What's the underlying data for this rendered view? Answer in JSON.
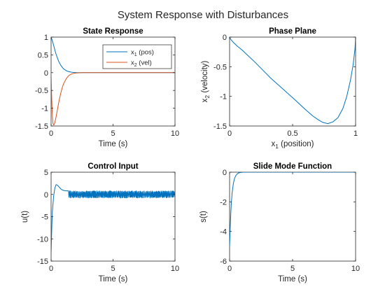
{
  "figure": {
    "title": "System Response with Disturbances"
  },
  "chart_data": [
    {
      "id": "state",
      "type": "line",
      "title": "State Response",
      "xlabel": "Time (s)",
      "ylabel": "",
      "xlim": [
        0,
        10
      ],
      "ylim": [
        -1.5,
        1
      ],
      "xticks": [
        0,
        5,
        10
      ],
      "xtick_labels": [
        "0",
        "5",
        "10"
      ],
      "yticks": [
        -1.5,
        -1,
        -0.5,
        0,
        0.5,
        1
      ],
      "ytick_labels": [
        "-1.5",
        "-1",
        "-0.5",
        "0",
        "0.5",
        "1"
      ],
      "grid": false,
      "legend": "top-right",
      "series": [
        {
          "name": "x1 (pos)",
          "legend_main": "x",
          "legend_sub": "1",
          "legend_rest": "(pos)",
          "color": "#0072BD",
          "x": [
            0,
            0.1,
            0.2,
            0.3,
            0.4,
            0.5,
            0.6,
            0.7,
            0.8,
            0.9,
            1.0,
            1.2,
            1.4,
            1.6,
            1.8,
            2.0,
            2.5,
            3.0,
            4.0,
            6.0,
            8.0,
            10.0
          ],
          "y": [
            1.0,
            0.9,
            0.77,
            0.64,
            0.52,
            0.42,
            0.33,
            0.26,
            0.2,
            0.15,
            0.11,
            0.06,
            0.03,
            0.015,
            0.007,
            0.003,
            0.0,
            0.0,
            0.0,
            0.0,
            0.0,
            0.0
          ]
        },
        {
          "name": "x2 (vel)",
          "legend_main": "x",
          "legend_sub": "2",
          "legend_rest": "(vel)",
          "color": "#D95319",
          "x": [
            0,
            0.05,
            0.1,
            0.15,
            0.2,
            0.25,
            0.3,
            0.4,
            0.5,
            0.6,
            0.7,
            0.8,
            0.9,
            1.0,
            1.2,
            1.4,
            1.6,
            1.8,
            2.0,
            2.5,
            3.0,
            4.0,
            6.0,
            8.0,
            10.0
          ],
          "y": [
            0.0,
            -0.75,
            -1.2,
            -1.42,
            -1.47,
            -1.46,
            -1.4,
            -1.25,
            -1.06,
            -0.87,
            -0.7,
            -0.55,
            -0.42,
            -0.32,
            -0.18,
            -0.09,
            -0.045,
            -0.02,
            -0.01,
            0.0,
            0.0,
            0.0,
            0.0,
            0.0,
            0.0
          ]
        }
      ]
    },
    {
      "id": "phase",
      "type": "line",
      "title": "Phase Plane",
      "xlabel": "(position)",
      "xlabel_main": "x",
      "xlabel_sub": "1",
      "ylabel": "(velocity)",
      "ylabel_main": "x",
      "ylabel_sub": "2",
      "xlim": [
        0,
        1
      ],
      "ylim": [
        -1.5,
        0
      ],
      "xticks": [
        0,
        0.5,
        1
      ],
      "xtick_labels": [
        "0",
        "0.5",
        "1"
      ],
      "yticks": [
        -1.5,
        -1,
        -0.5,
        0
      ],
      "ytick_labels": [
        "-1.5",
        "-1",
        "-0.5",
        "0"
      ],
      "grid": false,
      "series": [
        {
          "color": "#0072BD",
          "x": [
            0.0,
            0.01,
            0.03,
            0.06,
            0.1,
            0.15,
            0.2,
            0.26,
            0.33,
            0.42,
            0.52,
            0.6,
            0.66,
            0.7,
            0.74,
            0.78,
            0.82,
            0.86,
            0.9,
            0.93,
            0.96,
            0.98,
            0.995,
            1.0
          ],
          "y": [
            0.0,
            -0.04,
            -0.09,
            -0.15,
            -0.22,
            -0.32,
            -0.42,
            -0.55,
            -0.7,
            -0.87,
            -1.06,
            -1.22,
            -1.33,
            -1.39,
            -1.44,
            -1.46,
            -1.43,
            -1.36,
            -1.2,
            -1.0,
            -0.72,
            -0.47,
            -0.2,
            0.0
          ]
        }
      ]
    },
    {
      "id": "control",
      "type": "line",
      "title": "Control Input",
      "xlabel": "Time (s)",
      "ylabel": "u(t)",
      "xlim": [
        0,
        10
      ],
      "ylim": [
        -15,
        5
      ],
      "xticks": [
        0,
        5,
        10
      ],
      "xtick_labels": [
        "0",
        "5",
        "10"
      ],
      "yticks": [
        -15,
        -10,
        -5,
        0,
        5
      ],
      "ytick_labels": [
        "-15",
        "-10",
        "-5",
        "0",
        "5"
      ],
      "grid": false,
      "chatter_band": [
        -0.8,
        0.8
      ],
      "chatter_start": 1.4,
      "series": [
        {
          "color": "#0072BD",
          "x": [
            0.0,
            0.05,
            0.1,
            0.2,
            0.3,
            0.4,
            0.5,
            0.6,
            0.7,
            0.8,
            0.9,
            1.0,
            1.2,
            1.4
          ],
          "y": [
            -13.5,
            -8.0,
            -4.0,
            -0.5,
            1.4,
            2.2,
            2.1,
            1.8,
            1.5,
            1.2,
            1.0,
            0.9,
            0.8,
            0.8
          ]
        }
      ]
    },
    {
      "id": "slide",
      "type": "line",
      "title": "Slide Mode Function",
      "xlabel": "Time (s)",
      "ylabel": "s(t)",
      "xlim": [
        0,
        10
      ],
      "ylim": [
        -6,
        0
      ],
      "xticks": [
        0,
        5,
        10
      ],
      "xtick_labels": [
        "0",
        "5",
        "10"
      ],
      "yticks": [
        -6,
        -4,
        -2,
        0
      ],
      "ytick_labels": [
        "-6",
        "-4",
        "-2",
        "0"
      ],
      "grid": false,
      "series": [
        {
          "color": "#0072BD",
          "x": [
            0.0,
            0.05,
            0.1,
            0.15,
            0.2,
            0.3,
            0.4,
            0.5,
            0.6,
            0.7,
            0.8,
            0.9,
            1.0,
            1.2,
            1.5,
            2.0,
            3.0,
            5.0,
            7.5,
            10.0
          ],
          "y": [
            -5.0,
            -3.7,
            -2.7,
            -1.95,
            -1.4,
            -0.75,
            -0.4,
            -0.22,
            -0.12,
            -0.06,
            -0.03,
            -0.015,
            -0.008,
            -0.003,
            0.0,
            0.0,
            0.0,
            0.0,
            0.0,
            0.0
          ]
        }
      ]
    }
  ]
}
